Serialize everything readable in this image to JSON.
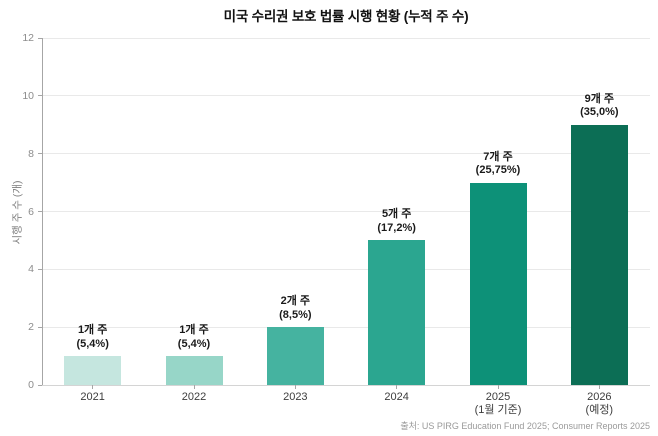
{
  "title": "미국 수리권 보호 법률 시행 현황 (누적 주 수)",
  "source": "출처: US PIRG Education Fund 2025; Consumer Reports 2025",
  "chart_data": {
    "type": "bar",
    "title": "미국 수리권 보호 법률 시행 현황 (누적 주 수)",
    "xlabel": "",
    "ylabel": "시행 주 수 (개)",
    "ylim": [
      0,
      12
    ],
    "yticks": [
      0,
      2,
      4,
      6,
      8,
      10,
      12
    ],
    "grid": "horizontal",
    "legend": "none",
    "categories": [
      {
        "label": "2021",
        "sublabel": ""
      },
      {
        "label": "2022",
        "sublabel": ""
      },
      {
        "label": "2023",
        "sublabel": ""
      },
      {
        "label": "2024",
        "sublabel": ""
      },
      {
        "label": "2025",
        "sublabel": "(1월 기준)"
      },
      {
        "label": "2026",
        "sublabel": "(예정)"
      }
    ],
    "values": [
      1,
      1,
      2,
      5,
      7,
      9
    ],
    "bar_labels": [
      {
        "line1": "1개 주",
        "line2": "(5,4%)"
      },
      {
        "line1": "1개 주",
        "line2": "(5,4%)"
      },
      {
        "line1": "2개 주",
        "line2": "(8,5%)"
      },
      {
        "line1": "5개 주",
        "line2": "(17,2%)"
      },
      {
        "line1": "7개 주",
        "line2": "(25,75%)"
      },
      {
        "line1": "9개 주",
        "line2": "(35,0%)"
      }
    ],
    "bar_colors": [
      "#c5e6df",
      "#97d6c8",
      "#45b3a0",
      "#2ba690",
      "#0d9178",
      "#0c6e55"
    ],
    "source": "출처: US PIRG Education Fund 2025; Consumer Reports 2025"
  },
  "colors": {
    "background": "#ffffff",
    "gridline": "#e9e9e9",
    "axis": "#a6a6a6",
    "title_text": "#111111",
    "tick_text": "#8c8c8c",
    "category_text": "#3d3d3d",
    "bar_label_text": "#1a1a1a",
    "source_text": "#9a9a9a"
  }
}
